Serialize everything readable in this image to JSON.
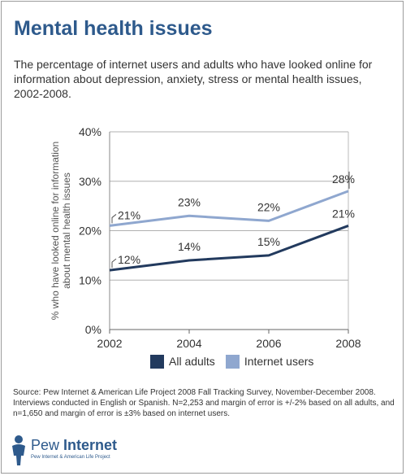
{
  "header": {
    "title": "Mental health issues",
    "subtitle": "The percentage of internet users and adults who have looked online for information about depression, anxiety, stress or mental health issues, 2002-2008."
  },
  "chart_data": {
    "type": "line",
    "x": [
      "2002",
      "2004",
      "2006",
      "2008"
    ],
    "ylim": [
      0,
      40
    ],
    "y_ticks": [
      0,
      10,
      20,
      30,
      40
    ],
    "y_tick_labels": [
      "0%",
      "10%",
      "20%",
      "30%",
      "40%"
    ],
    "ylabel": "% who have looked online for information about mental health issues",
    "xlabel": "",
    "grid": true,
    "legend_position": "bottom",
    "series": [
      {
        "name": "All adults",
        "values": [
          12,
          14,
          15,
          21
        ],
        "labels": [
          "12%",
          "14%",
          "15%",
          "21%"
        ],
        "color": "#223a5e"
      },
      {
        "name": "Internet users",
        "values": [
          21,
          23,
          22,
          28
        ],
        "labels": [
          "21%",
          "23%",
          "22%",
          "28%"
        ],
        "color": "#8fa7cf"
      }
    ]
  },
  "footer": {
    "source": "Source:  Pew Internet & American Life Project 2008 Fall Tracking Survey, November-December 2008. Interviews conducted in English or Spanish. N=2,253 and margin of error is +/-2% based on all adults, and n=1,650 and margin of error is ±3% based on internet users."
  },
  "logo": {
    "word_a": "Pew",
    "word_b": "Internet",
    "tagline": "Pew Internet & American Life Project"
  },
  "colors": {
    "title": "#2e5a8c",
    "all_adults": "#223a5e",
    "internet_users": "#8fa7cf",
    "grid": "#b0b0b0"
  }
}
